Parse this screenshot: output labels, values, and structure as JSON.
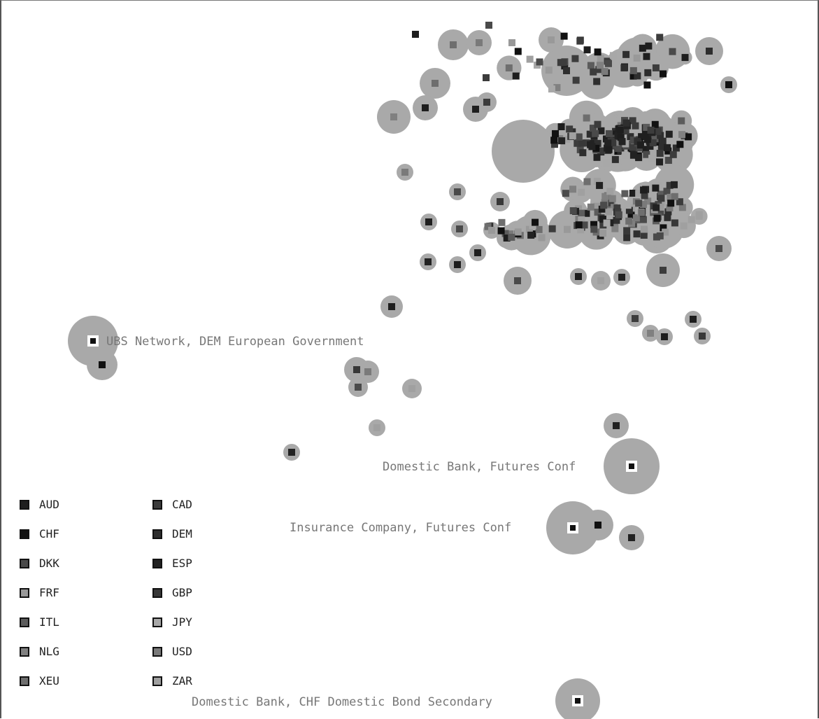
{
  "chart_data": {
    "type": "scatter",
    "title": "",
    "xlabel": "",
    "ylabel": "",
    "grid": false,
    "legend_position": "bottom-left",
    "legend": [
      {
        "code": "AUD",
        "color": "#1e1e1e"
      },
      {
        "code": "CAD",
        "color": "#3c3c3c"
      },
      {
        "code": "CHF",
        "color": "#111111"
      },
      {
        "code": "DEM",
        "color": "#2e2e2e"
      },
      {
        "code": "DKK",
        "color": "#4a4a4a"
      },
      {
        "code": "ESP",
        "color": "#222222"
      },
      {
        "code": "FRF",
        "color": "#999999"
      },
      {
        "code": "GBP",
        "color": "#383838"
      },
      {
        "code": "ITL",
        "color": "#5c5c5c"
      },
      {
        "code": "JPY",
        "color": "#a8a8a8"
      },
      {
        "code": "NLG",
        "color": "#808080"
      },
      {
        "code": "USD",
        "color": "#7a7a7a"
      },
      {
        "code": "XEU",
        "color": "#6e6e6e"
      },
      {
        "code": "ZAR",
        "color": "#a0a0a0"
      }
    ],
    "annotations": [
      {
        "text": "UBS Network, DEM European Government"
      },
      {
        "text": "Domestic Bank, Futures Conf"
      },
      {
        "text": "Insurance Company, Futures Conf"
      },
      {
        "text": "Domestic Bank, CHF Domestic  Bond Secondary"
      }
    ]
  }
}
